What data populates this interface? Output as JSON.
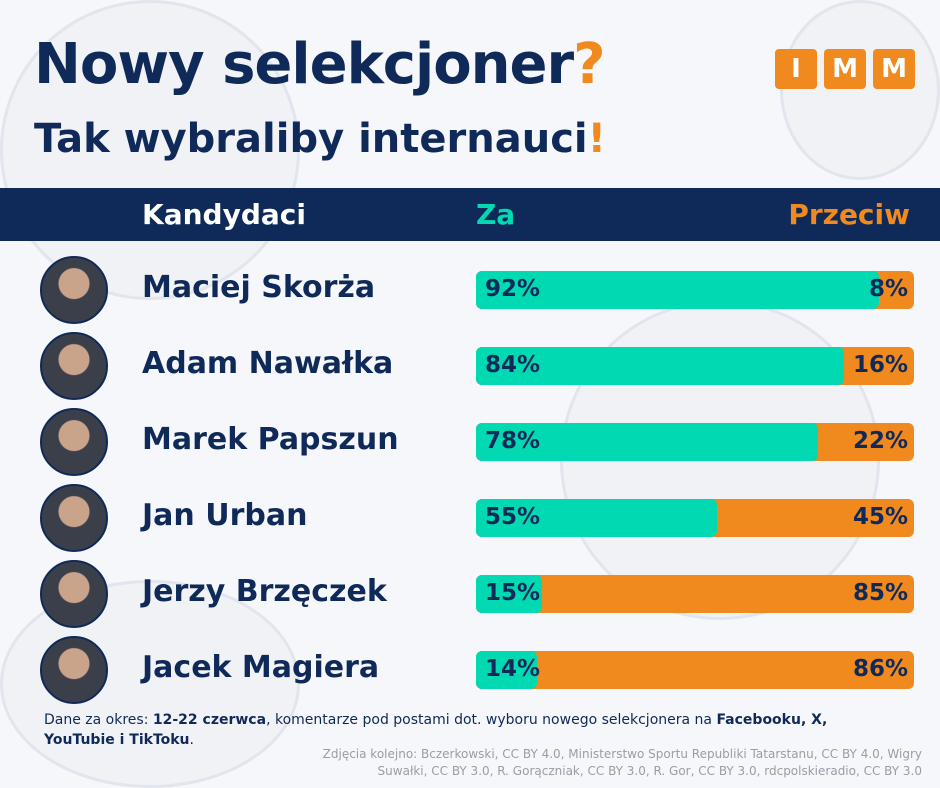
{
  "title": "Nowy selekcjoner",
  "title_mark": "?",
  "subtitle": "Tak wybraliby internauci",
  "subtitle_mark": "!",
  "logo": [
    "I",
    "M",
    "M"
  ],
  "colors": {
    "navy": "#0f2a59",
    "za": "#00d9b1",
    "przeciw": "#f08a1e"
  },
  "chart_data": {
    "type": "bar",
    "stacked": true,
    "orientation": "horizontal",
    "columns": {
      "candidates": "Kandydaci",
      "za": "Za",
      "przeciw": "Przeciw"
    },
    "categories": [
      "Maciej Skorża",
      "Adam Nawałka",
      "Marek Papszun",
      "Jan Urban",
      "Jerzy Brzęczek",
      "Jacek Magiera"
    ],
    "series": [
      {
        "name": "Za",
        "values": [
          92,
          84,
          78,
          55,
          15,
          14
        ]
      },
      {
        "name": "Przeciw",
        "values": [
          8,
          16,
          22,
          45,
          85,
          86
        ]
      }
    ],
    "unit": "%"
  },
  "footer": {
    "p1": "Dane za okres: ",
    "b1": "12-22 czerwca",
    "p2": ", komentarze pod postami dot. wyboru nowego selekcjonera na ",
    "b2": "Facebooku, X, YouTubie i TikToku",
    "p3": "."
  },
  "credits": "Zdjęcia kolejno: Bczerkowski, CC BY 4.0, Ministerstwo Sportu Republiki Tatarstanu, CC BY 4.0, Wigry Suwałki, CC BY 3.0, R. Gorączniak, CC BY 3.0, R. Gor, CC BY 3.0, rdcpolskieradio, CC BY 3.0"
}
